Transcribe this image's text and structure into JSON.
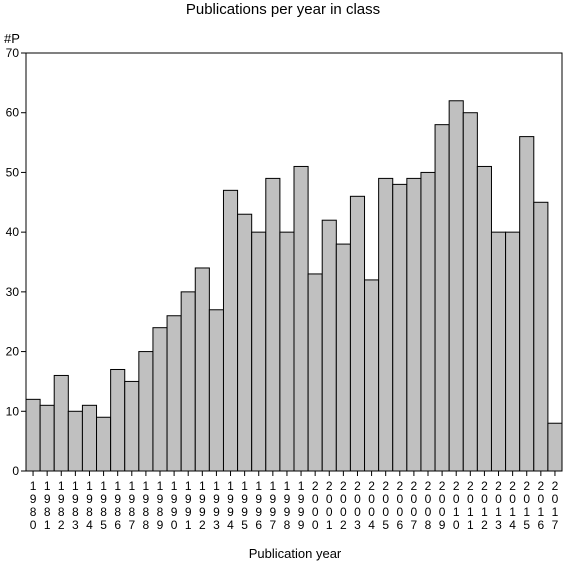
{
  "chart_data": {
    "type": "bar",
    "title": "Publications per year in class",
    "xlabel": "Publication year",
    "ylabel": "#P",
    "ylim": [
      0,
      70
    ],
    "yticks": [
      0,
      10,
      20,
      30,
      40,
      50,
      60,
      70
    ],
    "grid": false,
    "bar_color": "#c0c0c0",
    "categories": [
      "1980",
      "1981",
      "1982",
      "1983",
      "1984",
      "1985",
      "1986",
      "1987",
      "1988",
      "1989",
      "1990",
      "1991",
      "1992",
      "1993",
      "1994",
      "1995",
      "1996",
      "1997",
      "1998",
      "1999",
      "2000",
      "2001",
      "2002",
      "2003",
      "2004",
      "2005",
      "2006",
      "2007",
      "2008",
      "2009",
      "2010",
      "2011",
      "2012",
      "2013",
      "2014",
      "2015",
      "2016",
      "2017"
    ],
    "values": [
      12,
      11,
      16,
      10,
      11,
      9,
      17,
      15,
      20,
      24,
      26,
      30,
      34,
      27,
      47,
      43,
      40,
      49,
      40,
      51,
      33,
      42,
      38,
      46,
      32,
      49,
      48,
      49,
      50,
      58,
      62,
      60,
      51,
      40,
      40,
      56,
      45,
      8
    ]
  }
}
